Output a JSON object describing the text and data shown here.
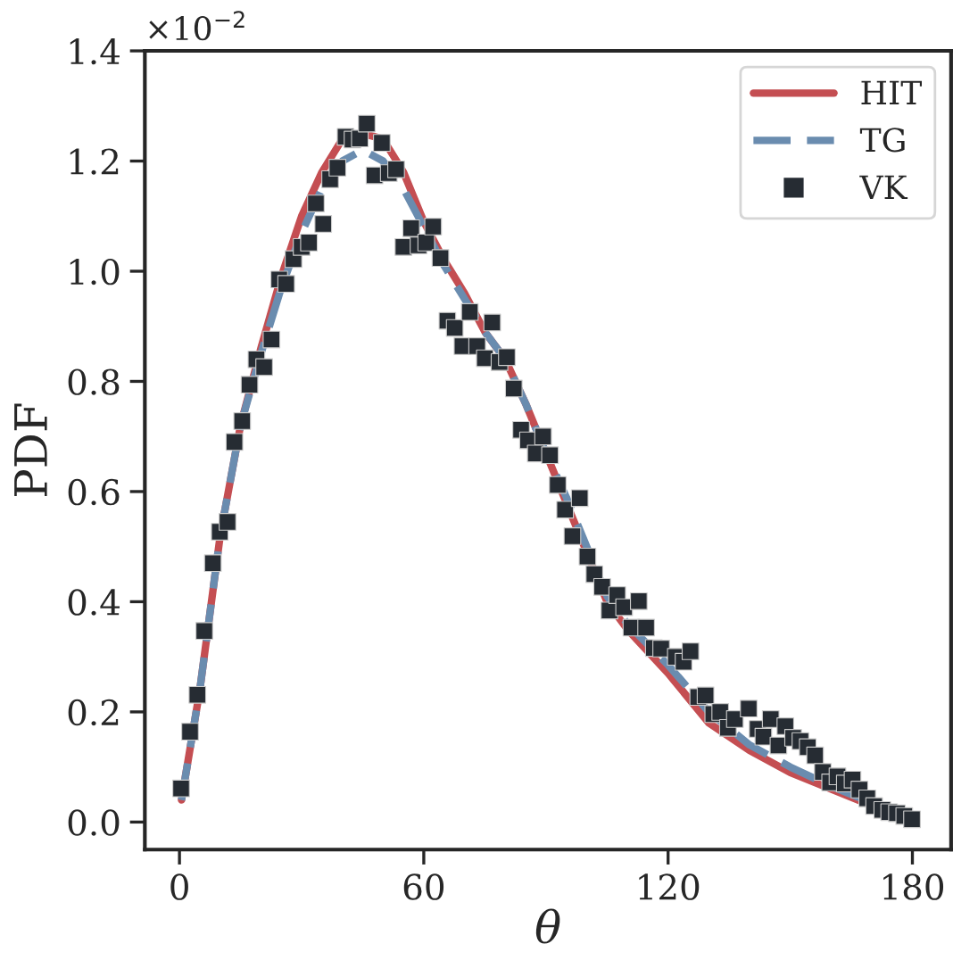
{
  "chart_data": {
    "type": "line",
    "xlabel": "θ",
    "ylabel": "PDF",
    "annotations": [
      "×10$^{−2}$"
    ],
    "xlim": [
      -8.5,
      189.5
    ],
    "xticks": [
      0,
      60,
      120,
      180
    ],
    "ylim": [
      -0.05,
      1.4
    ],
    "yticks": [
      {
        "value": 0,
        "label": "0.0"
      },
      0.2,
      0.4,
      0.6,
      0.8,
      {
        "value": 1,
        "label": "1.0"
      },
      1.2,
      1.4
    ],
    "grid": false,
    "legend": "top right",
    "series": [
      {
        "name": "HIT",
        "color": "#c44e52",
        "line_style": "solid",
        "x": [
          0.5,
          5,
          10,
          15,
          20,
          25,
          30,
          35,
          40,
          45,
          50,
          55,
          60,
          65,
          70,
          75,
          80,
          85,
          90,
          95,
          100,
          105,
          110,
          120,
          130,
          140,
          150,
          160,
          170,
          179.5
        ],
        "values": [
          0.04,
          0.24,
          0.52,
          0.72,
          0.86,
          0.99,
          1.1,
          1.18,
          1.24,
          1.25,
          1.24,
          1.18,
          1.09,
          1.02,
          0.96,
          0.89,
          0.84,
          0.76,
          0.67,
          0.58,
          0.49,
          0.4,
          0.35,
          0.27,
          0.18,
          0.13,
          0.09,
          0.06,
          0.03,
          0.01
        ]
      },
      {
        "name": "TG",
        "color": "#6a8caf",
        "line_style": "dashed",
        "x": [
          0.5,
          5,
          10,
          15,
          20,
          25,
          30,
          35,
          40,
          45,
          50,
          55,
          60,
          65,
          70,
          75,
          80,
          85,
          90,
          95,
          100,
          105,
          110,
          120,
          130,
          140,
          150,
          160,
          170,
          179.5
        ],
        "values": [
          0.04,
          0.24,
          0.52,
          0.72,
          0.85,
          0.97,
          1.07,
          1.15,
          1.2,
          1.22,
          1.2,
          1.15,
          1.08,
          1.01,
          0.95,
          0.89,
          0.84,
          0.76,
          0.67,
          0.59,
          0.5,
          0.41,
          0.36,
          0.285,
          0.2,
          0.14,
          0.1,
          0.065,
          0.035,
          0.01
        ]
      },
      {
        "name": "VK",
        "type": "scatter",
        "color": "#262c33",
        "marker": "square",
        "x": [
          0.4,
          2.6,
          4.4,
          6.1,
          8.2,
          9.9,
          11.8,
          13.5,
          15.4,
          17.2,
          18.9,
          20.8,
          22.6,
          24.5,
          26.2,
          28.0,
          30.0,
          31.8,
          33.5,
          35.3,
          37.0,
          38.8,
          40.8,
          42.5,
          44.3,
          46.0,
          47.9,
          49.7,
          51.4,
          53.2,
          55.0,
          56.9,
          58.7,
          60.6,
          62.3,
          64.1,
          65.8,
          67.6,
          69.5,
          71.3,
          73.1,
          75.0,
          76.8,
          78.6,
          80.4,
          82.1,
          83.9,
          85.6,
          87.5,
          89.3,
          91.0,
          92.9,
          94.7,
          96.5,
          98.3,
          100.2,
          101.9,
          103.8,
          105.6,
          107.5,
          109.2,
          111.0,
          112.8,
          114.6,
          116.5,
          118.3,
          121.9,
          123.8,
          125.5,
          127.4,
          129.2,
          131.1,
          132.8,
          134.7,
          136.4,
          139.8,
          142.0,
          143.4,
          145.2,
          147.1,
          148.8,
          150.7,
          152.5,
          154.3,
          156.1,
          158.0,
          159.8,
          161.6,
          163.4,
          165.3,
          167.0,
          168.9,
          170.6,
          172.6,
          174.3,
          176.2,
          178.0,
          179.9
        ],
        "values": [
          0.061,
          0.164,
          0.231,
          0.347,
          0.47,
          0.527,
          0.545,
          0.69,
          0.728,
          0.794,
          0.84,
          0.826,
          0.876,
          0.985,
          0.977,
          1.022,
          1.044,
          1.052,
          1.123,
          1.086,
          1.167,
          1.188,
          1.244,
          1.239,
          1.241,
          1.268,
          1.174,
          1.233,
          1.178,
          1.185,
          1.044,
          1.078,
          1.047,
          1.052,
          1.081,
          1.024,
          0.91,
          0.897,
          0.864,
          0.926,
          0.864,
          0.842,
          0.907,
          0.835,
          0.844,
          0.787,
          0.712,
          0.693,
          0.669,
          0.7,
          0.666,
          0.612,
          0.567,
          0.519,
          0.588,
          0.482,
          0.45,
          0.427,
          0.384,
          0.412,
          0.39,
          0.353,
          0.401,
          0.353,
          0.316,
          0.315,
          0.3,
          0.291,
          0.31,
          0.227,
          0.23,
          0.196,
          0.2,
          0.171,
          0.187,
          0.206,
          0.169,
          0.155,
          0.187,
          0.139,
          0.174,
          0.153,
          0.147,
          0.136,
          0.121,
          0.091,
          0.072,
          0.083,
          0.07,
          0.077,
          0.059,
          0.043,
          0.029,
          0.022,
          0.018,
          0.016,
          0.011,
          0.005
        ]
      }
    ]
  }
}
